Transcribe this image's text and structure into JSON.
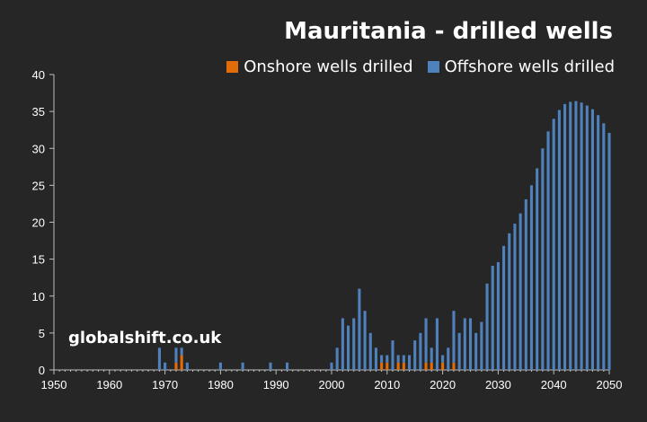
{
  "chart_data": {
    "type": "bar",
    "stacked": true,
    "title": "Mauritania - drilled wells",
    "xlabel": "",
    "ylabel": "",
    "xlim": [
      1950,
      2050
    ],
    "ylim": [
      0,
      40
    ],
    "x_ticks": [
      "1950",
      "1960",
      "1970",
      "1980",
      "1990",
      "2000",
      "2010",
      "2020",
      "2030",
      "2040",
      "2050"
    ],
    "y_ticks": [
      "0",
      "5",
      "10",
      "15",
      "20",
      "25",
      "30",
      "35",
      "40"
    ],
    "grid": false,
    "legend_position": "top-right",
    "x": [
      1969,
      1970,
      1972,
      1973,
      1974,
      1980,
      1984,
      1989,
      1992,
      2000,
      2001,
      2002,
      2003,
      2004,
      2005,
      2006,
      2007,
      2008,
      2009,
      2010,
      2011,
      2012,
      2013,
      2014,
      2015,
      2016,
      2017,
      2018,
      2019,
      2020,
      2021,
      2022,
      2023,
      2024,
      2025,
      2026,
      2027,
      2028,
      2029,
      2030,
      2031,
      2032,
      2033,
      2034,
      2035,
      2036,
      2037,
      2038,
      2039,
      2040,
      2041,
      2042,
      2043,
      2044,
      2045,
      2046,
      2047,
      2048,
      2049,
      2050
    ],
    "series": [
      {
        "name": "Onshore wells drilled",
        "color": "#E36C0A",
        "values": [
          0,
          0,
          1,
          2,
          0,
          0,
          0,
          0,
          0,
          0,
          0,
          0,
          0,
          0,
          0,
          0,
          0,
          0,
          1,
          1,
          0,
          1,
          1,
          0,
          0,
          0,
          1,
          1,
          0,
          1,
          0,
          1,
          0,
          0,
          0,
          0,
          0,
          0,
          0,
          0,
          0,
          0,
          0,
          0,
          0,
          0,
          0,
          0,
          0,
          0,
          0,
          0,
          0,
          0,
          0,
          0,
          0,
          0,
          0,
          0
        ]
      },
      {
        "name": "Offshore wells drilled",
        "color": "#4F81BD",
        "values": [
          3,
          1,
          2,
          1,
          1,
          1,
          1,
          1,
          1,
          1,
          3,
          7,
          6,
          7,
          11,
          8,
          5,
          3,
          1,
          1,
          4,
          1,
          1,
          2,
          4,
          5,
          6,
          2,
          7,
          1,
          3,
          7,
          5,
          7,
          7,
          5,
          6.5,
          11.7,
          14.1,
          14.6,
          16.8,
          18.5,
          19.8,
          21.2,
          23.1,
          25,
          27.3,
          30,
          32.3,
          34,
          35.2,
          36,
          36.3,
          36.4,
          36.2,
          35.8,
          35.3,
          34.5,
          33.4,
          32.1
        ]
      }
    ]
  },
  "watermark": "globalshift.co.uk"
}
